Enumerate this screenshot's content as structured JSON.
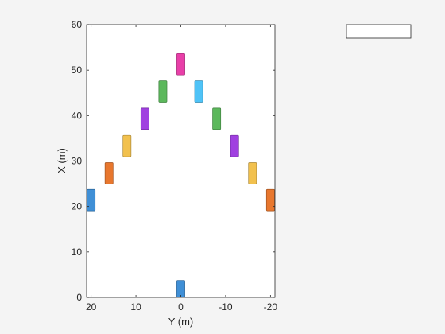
{
  "chart_data": {
    "type": "scatter",
    "marker": "rectangle",
    "xlabel": "Y (m)",
    "ylabel": "X (m)",
    "xlim": [
      21,
      -21
    ],
    "ylim": [
      0,
      60
    ],
    "x_reversed": true,
    "x_ticks": [
      20,
      10,
      0,
      -10,
      -20
    ],
    "x_tick_labels": [
      "20",
      "10",
      "0",
      "-10",
      "-20"
    ],
    "y_ticks": [
      0,
      10,
      20,
      30,
      40,
      50,
      60
    ],
    "y_tick_labels": [
      "0",
      "10",
      "20",
      "30",
      "40",
      "50",
      "60"
    ],
    "grid": false,
    "legend": {
      "placement": "outside-top-right",
      "entries": []
    },
    "vehicle_size": {
      "width_m": 1.8,
      "length_m": 4.7
    },
    "vehicles": [
      {
        "y": 0,
        "x": 1.4,
        "color": "#3f8fd6"
      },
      {
        "y": 20,
        "x": 21.4,
        "color": "#3f8fd6"
      },
      {
        "y": 16,
        "x": 27.3,
        "color": "#e8772e"
      },
      {
        "y": 12,
        "x": 33.3,
        "color": "#f2c14e"
      },
      {
        "y": 8,
        "x": 39.3,
        "color": "#a040e0"
      },
      {
        "y": 4,
        "x": 45.3,
        "color": "#5cb85c"
      },
      {
        "y": 0,
        "x": 51.3,
        "color": "#e83fa8"
      },
      {
        "y": -4,
        "x": 45.3,
        "color": "#4fc3f7"
      },
      {
        "y": -8,
        "x": 39.3,
        "color": "#5cb85c"
      },
      {
        "y": -12,
        "x": 33.3,
        "color": "#a040e0"
      },
      {
        "y": -16,
        "x": 27.3,
        "color": "#f2c14e"
      },
      {
        "y": -20,
        "x": 21.4,
        "color": "#e8772e"
      }
    ]
  }
}
